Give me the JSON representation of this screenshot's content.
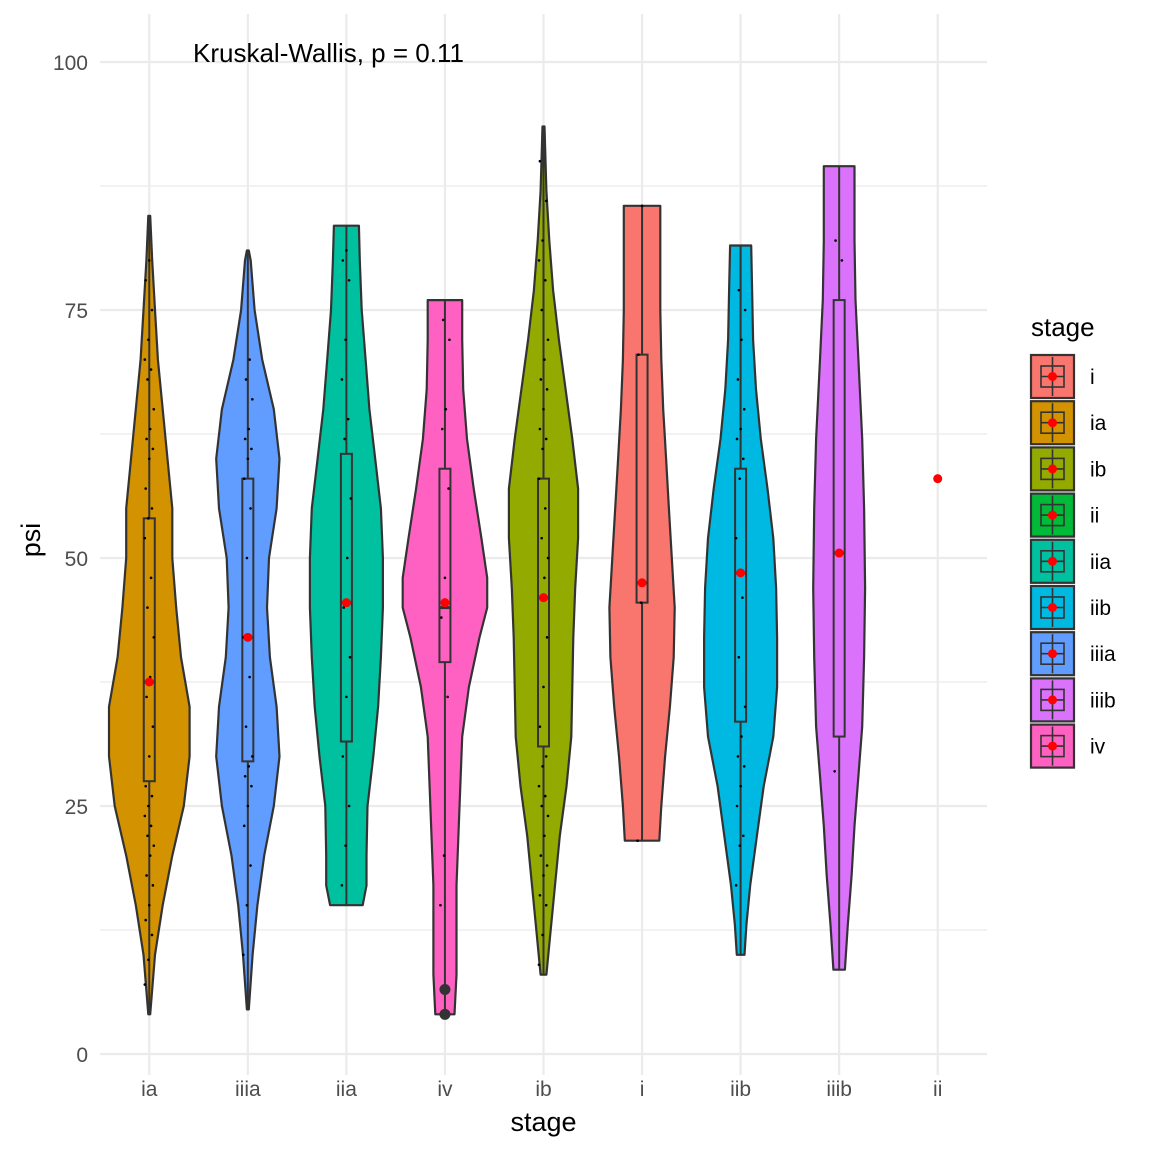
{
  "chart_data": {
    "type": "violin",
    "annotation": "Kruskal-Wallis, p = 0.11",
    "xlabel": "stage",
    "ylabel": "psi",
    "ylim": [
      0,
      100
    ],
    "yticks": [
      "0",
      "25",
      "50",
      "75",
      "100"
    ],
    "ytick_values": [
      0,
      25,
      50,
      75,
      100
    ],
    "grid": true,
    "legend": {
      "title": "stage",
      "placement": "right",
      "items": [
        "i",
        "ia",
        "ib",
        "ii",
        "iia",
        "iib",
        "iiia",
        "iiib",
        "iv"
      ]
    },
    "colors": {
      "i": "#F8766D",
      "ia": "#D39200",
      "ib": "#93AA00",
      "ii": "#00BA38",
      "iia": "#00C19F",
      "iib": "#00B9E3",
      "iiia": "#619CFF",
      "iiib": "#DB72FB",
      "iv": "#FF61C3"
    },
    "mean_color": "#FF0000",
    "categories": [
      "ia",
      "iiia",
      "iia",
      "iv",
      "ib",
      "i",
      "iib",
      "iiib",
      "ii"
    ],
    "groups": [
      {
        "stage": "ia",
        "min": 4,
        "max": 84.5,
        "q1": 27.5,
        "median": 37.5,
        "q3": 54,
        "mean": 37.5,
        "outliers": [],
        "density": [
          [
            4,
            0.01
          ],
          [
            10,
            0.06
          ],
          [
            15,
            0.14
          ],
          [
            20,
            0.24
          ],
          [
            25,
            0.36
          ],
          [
            30,
            0.42
          ],
          [
            35,
            0.42
          ],
          [
            40,
            0.33
          ],
          [
            45,
            0.28
          ],
          [
            50,
            0.24
          ],
          [
            55,
            0.24
          ],
          [
            60,
            0.19
          ],
          [
            65,
            0.14
          ],
          [
            70,
            0.09
          ],
          [
            75,
            0.06
          ],
          [
            80,
            0.03
          ],
          [
            84.5,
            0.01
          ]
        ],
        "points": [
          7,
          9.5,
          12,
          13.5,
          15,
          17,
          18,
          20,
          21,
          22,
          23,
          24,
          25,
          26,
          27,
          30,
          33,
          36,
          38,
          42,
          45,
          48,
          52,
          54,
          55,
          57,
          60,
          61,
          62,
          63,
          65,
          68,
          69,
          70,
          72,
          75,
          78,
          80
        ]
      },
      {
        "stage": "iiia",
        "min": 4.5,
        "max": 81,
        "q1": 29.5,
        "median": 42,
        "q3": 58,
        "mean": 42,
        "outliers": [],
        "density": [
          [
            4.5,
            0.01
          ],
          [
            10,
            0.05
          ],
          [
            15,
            0.1
          ],
          [
            20,
            0.17
          ],
          [
            25,
            0.27
          ],
          [
            30,
            0.33
          ],
          [
            35,
            0.3
          ],
          [
            40,
            0.23
          ],
          [
            45,
            0.2
          ],
          [
            50,
            0.22
          ],
          [
            55,
            0.3
          ],
          [
            60,
            0.33
          ],
          [
            65,
            0.27
          ],
          [
            70,
            0.15
          ],
          [
            75,
            0.07
          ],
          [
            80,
            0.03
          ],
          [
            81,
            0.01
          ]
        ],
        "points": [
          10,
          15,
          19,
          23,
          25,
          27,
          28,
          29,
          30,
          33,
          38,
          42,
          50,
          55,
          58,
          60,
          61,
          62,
          63,
          66,
          68,
          70
        ]
      },
      {
        "stage": "iia",
        "min": 15,
        "max": 83.5,
        "q1": 31.5,
        "median": 45.5,
        "q3": 60.5,
        "mean": 45.5,
        "outliers": [],
        "density": [
          [
            15,
            0.17
          ],
          [
            17,
            0.21
          ],
          [
            20,
            0.21
          ],
          [
            25,
            0.22
          ],
          [
            30,
            0.28
          ],
          [
            35,
            0.33
          ],
          [
            40,
            0.36
          ],
          [
            45,
            0.38
          ],
          [
            50,
            0.38
          ],
          [
            55,
            0.36
          ],
          [
            60,
            0.3
          ],
          [
            65,
            0.24
          ],
          [
            70,
            0.2
          ],
          [
            75,
            0.16
          ],
          [
            80,
            0.14
          ],
          [
            83.5,
            0.13
          ]
        ],
        "points": [
          17,
          21,
          25,
          30,
          36,
          40,
          45,
          50,
          56,
          62,
          64,
          68,
          72,
          78,
          80,
          81
        ]
      },
      {
        "stage": "iv",
        "min": 4,
        "max": 76,
        "q1": 39.5,
        "median": 45,
        "q3": 59,
        "mean": 45.5,
        "outliers": [
          4,
          6.5
        ],
        "density": [
          [
            4,
            0.1
          ],
          [
            8,
            0.12
          ],
          [
            12,
            0.12
          ],
          [
            17,
            0.12
          ],
          [
            22,
            0.14
          ],
          [
            27,
            0.16
          ],
          [
            32,
            0.18
          ],
          [
            37,
            0.25
          ],
          [
            42,
            0.36
          ],
          [
            45,
            0.44
          ],
          [
            48,
            0.44
          ],
          [
            52,
            0.38
          ],
          [
            57,
            0.3
          ],
          [
            62,
            0.23
          ],
          [
            67,
            0.19
          ],
          [
            72,
            0.18
          ],
          [
            76,
            0.18
          ]
        ],
        "points": [
          15,
          20,
          36,
          44,
          48,
          57,
          63,
          65,
          72,
          74
        ]
      },
      {
        "stage": "ib",
        "min": 8,
        "max": 93.5,
        "q1": 31,
        "median": 46,
        "q3": 58,
        "mean": 46,
        "outliers": [],
        "density": [
          [
            8,
            0.03
          ],
          [
            12,
            0.07
          ],
          [
            17,
            0.12
          ],
          [
            22,
            0.17
          ],
          [
            27,
            0.24
          ],
          [
            32,
            0.29
          ],
          [
            37,
            0.3
          ],
          [
            42,
            0.31
          ],
          [
            47,
            0.33
          ],
          [
            52,
            0.36
          ],
          [
            57,
            0.36
          ],
          [
            62,
            0.3
          ],
          [
            67,
            0.23
          ],
          [
            72,
            0.16
          ],
          [
            77,
            0.1
          ],
          [
            82,
            0.06
          ],
          [
            87,
            0.03
          ],
          [
            93.5,
            0.01
          ]
        ],
        "points": [
          9,
          12,
          15,
          16,
          18,
          19,
          20,
          22,
          24,
          25,
          26,
          27,
          29,
          30,
          33,
          37,
          42,
          46,
          48,
          50,
          52,
          55,
          58,
          61,
          62,
          63,
          65,
          67,
          68,
          70,
          72,
          75,
          78,
          80,
          82,
          86,
          90
        ]
      },
      {
        "stage": "i",
        "min": 21.5,
        "max": 85.5,
        "q1": 45.5,
        "median": 47.5,
        "q3": 70.5,
        "mean": 47.5,
        "outliers": [],
        "density": [
          [
            21.5,
            0.18
          ],
          [
            25,
            0.2
          ],
          [
            30,
            0.24
          ],
          [
            35,
            0.29
          ],
          [
            40,
            0.33
          ],
          [
            45,
            0.34
          ],
          [
            50,
            0.31
          ],
          [
            55,
            0.28
          ],
          [
            60,
            0.25
          ],
          [
            65,
            0.22
          ],
          [
            70,
            0.2
          ],
          [
            75,
            0.19
          ],
          [
            80,
            0.19
          ],
          [
            85.5,
            0.19
          ]
        ],
        "points": [
          21.5,
          45.5,
          47.5,
          70.5,
          85.5
        ]
      },
      {
        "stage": "iib",
        "min": 10,
        "max": 81.5,
        "q1": 33.5,
        "median": 48.5,
        "q3": 59,
        "mean": 48.5,
        "outliers": [],
        "density": [
          [
            10,
            0.04
          ],
          [
            13,
            0.06
          ],
          [
            17,
            0.1
          ],
          [
            22,
            0.17
          ],
          [
            27,
            0.24
          ],
          [
            32,
            0.34
          ],
          [
            37,
            0.38
          ],
          [
            42,
            0.38
          ],
          [
            47,
            0.37
          ],
          [
            52,
            0.34
          ],
          [
            57,
            0.28
          ],
          [
            62,
            0.21
          ],
          [
            67,
            0.16
          ],
          [
            72,
            0.13
          ],
          [
            77,
            0.12
          ],
          [
            81.5,
            0.11
          ]
        ],
        "points": [
          17,
          21,
          22,
          25,
          27,
          29,
          30,
          32,
          35,
          40,
          46,
          52,
          58,
          60,
          62,
          63,
          65,
          68,
          72,
          75,
          77
        ]
      },
      {
        "stage": "iiib",
        "min": 8.5,
        "max": 89.5,
        "q1": 32,
        "median": 50.5,
        "q3": 76,
        "mean": 50.5,
        "outliers": [],
        "density": [
          [
            8.5,
            0.06
          ],
          [
            13,
            0.09
          ],
          [
            18,
            0.13
          ],
          [
            23,
            0.16
          ],
          [
            28,
            0.2
          ],
          [
            33,
            0.24
          ],
          [
            40,
            0.26
          ],
          [
            47,
            0.27
          ],
          [
            55,
            0.26
          ],
          [
            62,
            0.24
          ],
          [
            70,
            0.2
          ],
          [
            76,
            0.17
          ],
          [
            82,
            0.16
          ],
          [
            89.5,
            0.16
          ]
        ],
        "points": [
          28.5,
          50.5,
          80,
          82
        ]
      },
      {
        "stage": "ii",
        "min": 58,
        "max": 58,
        "q1": 58,
        "median": 58,
        "q3": 58,
        "mean": 58,
        "outliers": [],
        "density": [],
        "points": []
      }
    ]
  }
}
